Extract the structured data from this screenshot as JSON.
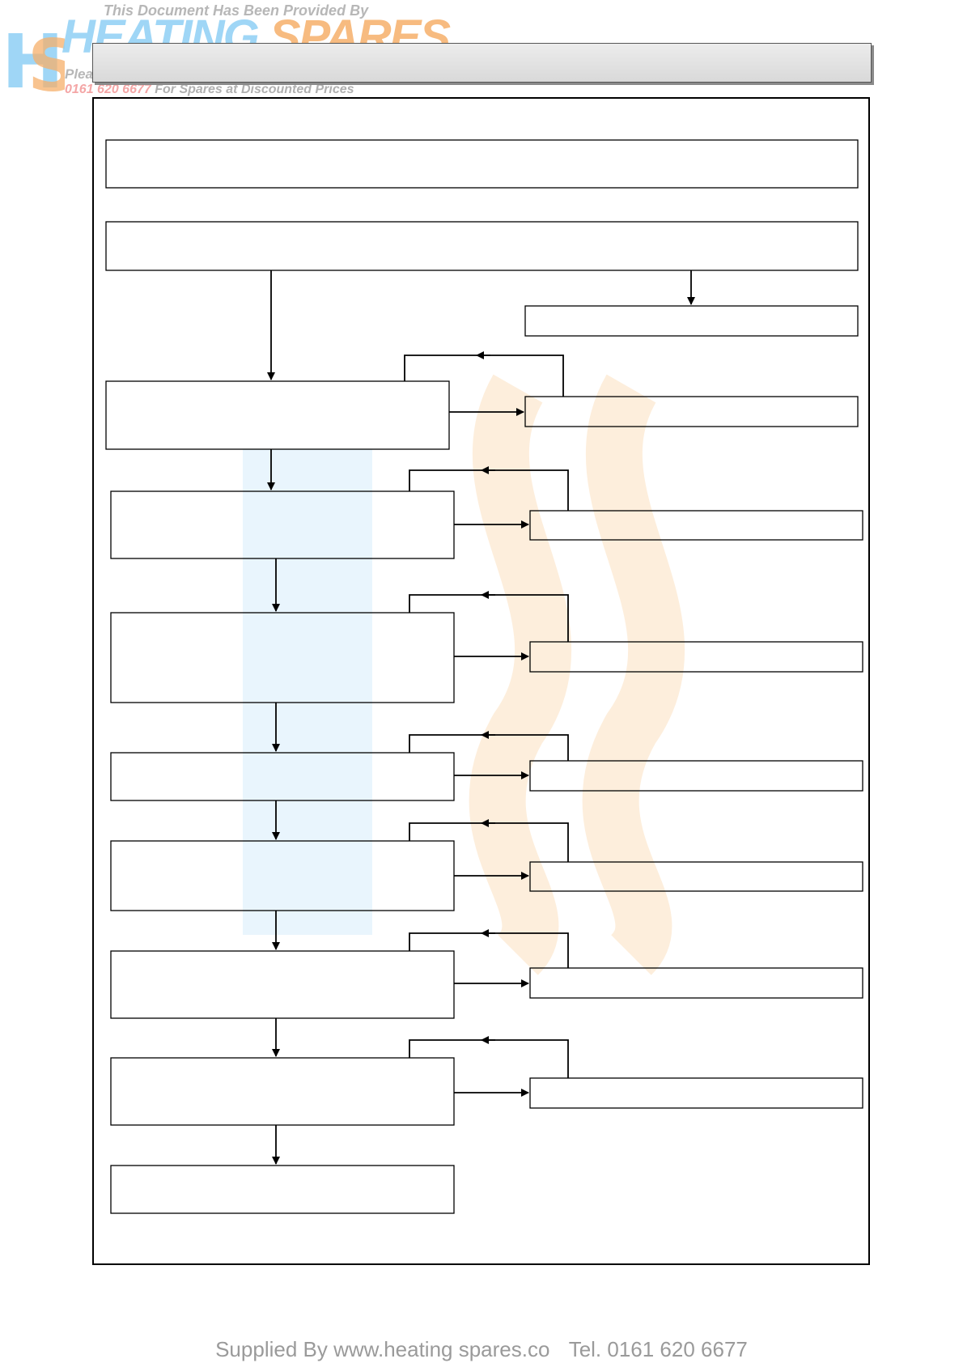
{
  "header": {
    "provided_by": "This Document Has Been Provided By",
    "brand_word_1": "HEATING",
    "brand_word_2": "SPARES",
    "please_text": "Plea",
    "phone": "0161 620 6677",
    "phone_tagline": "For Spares at Discounted Prices"
  },
  "title_bar": {
    "text": ""
  },
  "footer": {
    "supplied_by": "Supplied By www.heating spares.co",
    "tel": "Tel. 0161 620 6677"
  },
  "colors": {
    "line": "#000000",
    "watermark_blue": "#cfe9fa",
    "watermark_orange": "#fbe3c4",
    "brand_blue": "#8fd0f5",
    "brand_orange": "#f6b06a",
    "phone_pink": "#f4a6a6"
  }
}
